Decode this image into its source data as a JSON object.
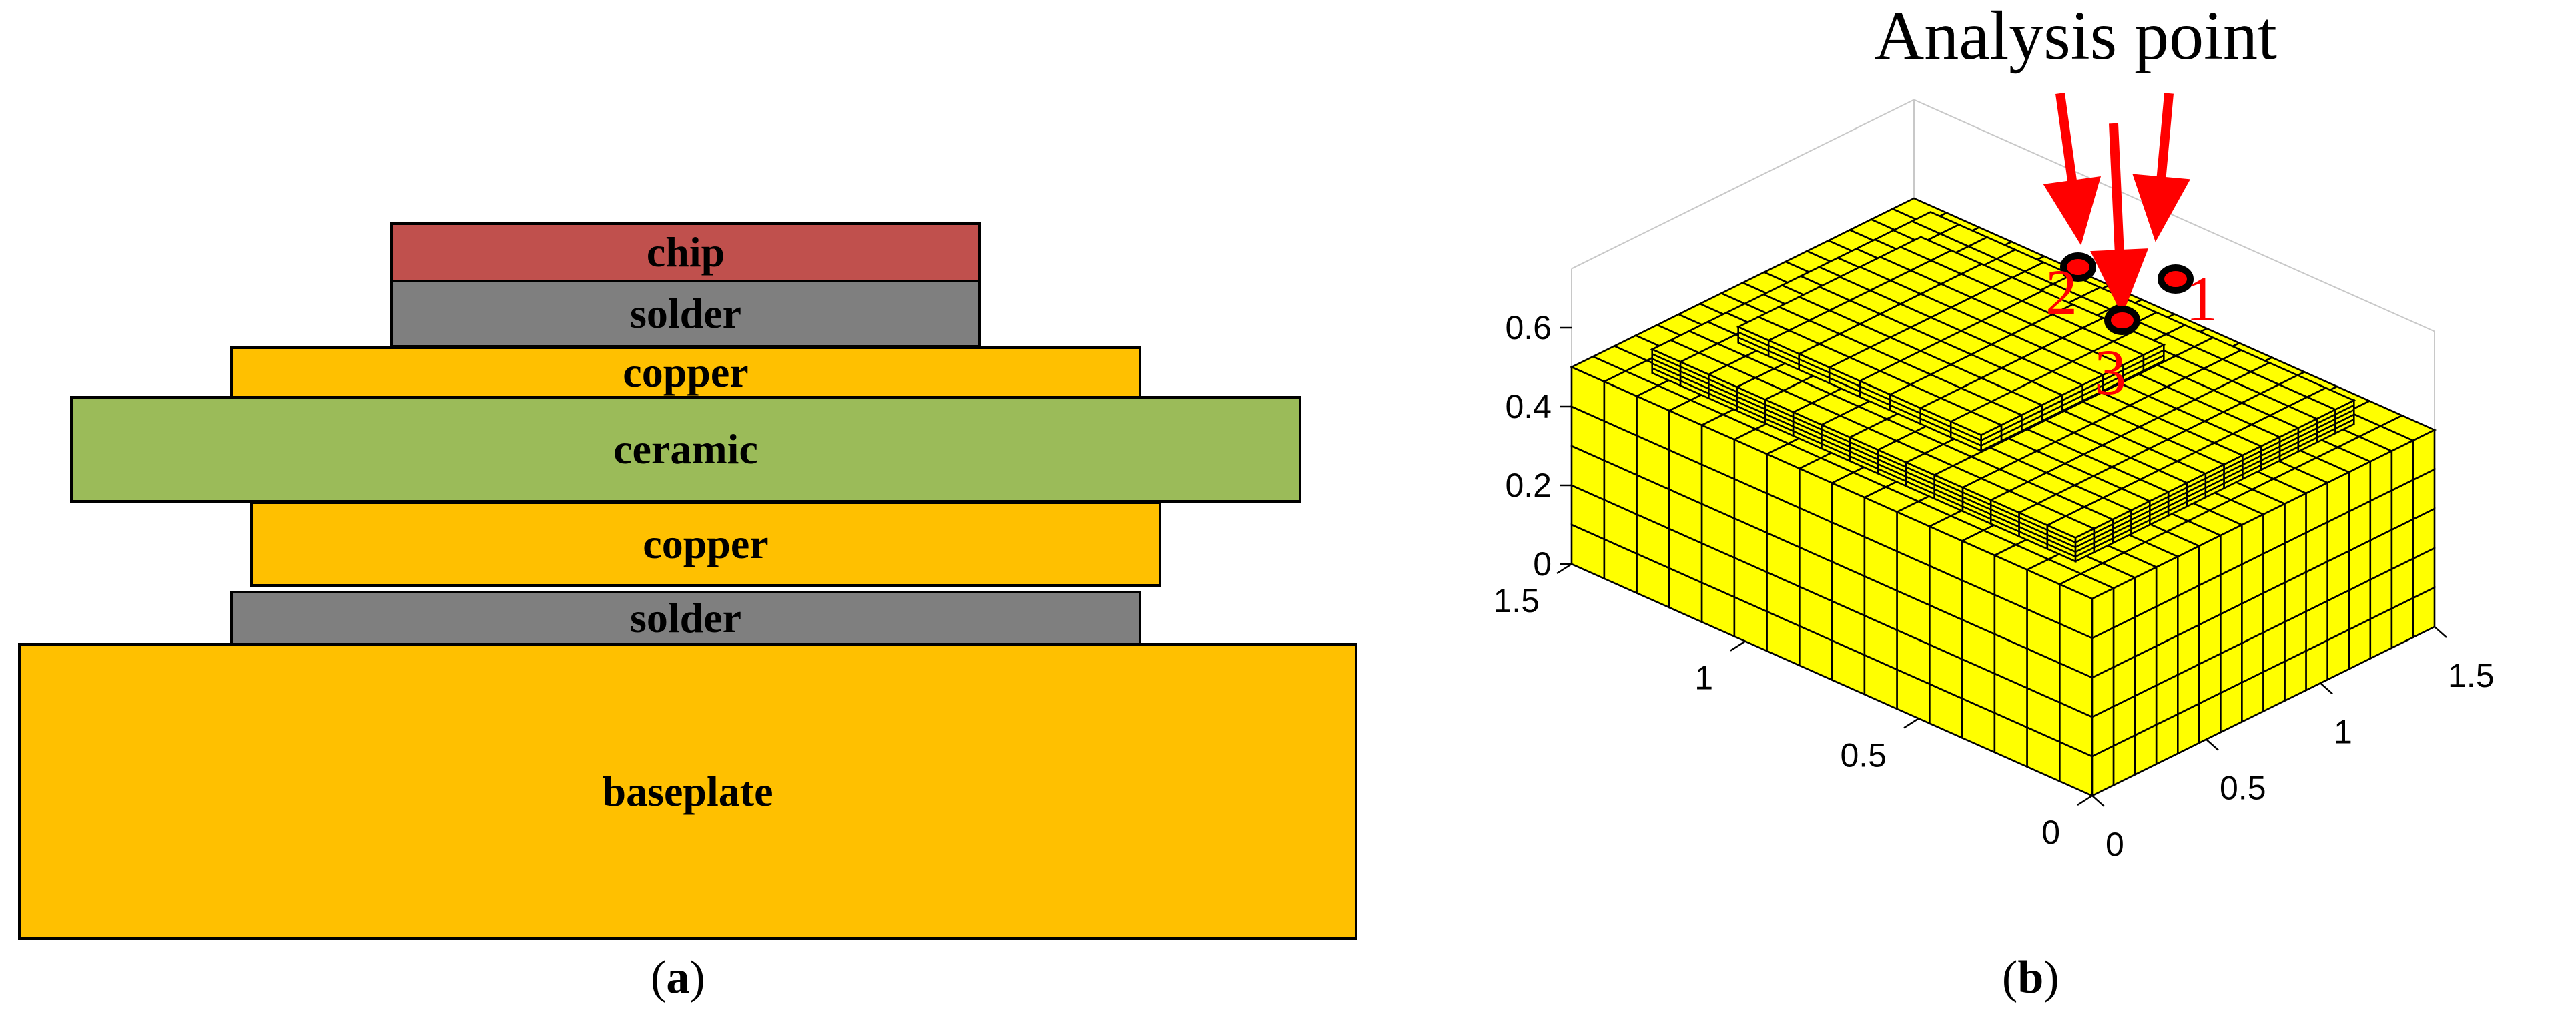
{
  "panel_a": {
    "caption_open": "(",
    "caption_letter": "a",
    "caption_close": ")",
    "layers": [
      {
        "label": "chip",
        "color": "#C0504D"
      },
      {
        "label": "solder",
        "color": "#7F7F7F"
      },
      {
        "label": "copper",
        "color": "#FFC000"
      },
      {
        "label": "ceramic",
        "color": "#9BBB59"
      },
      {
        "label": "copper",
        "color": "#FFC000"
      },
      {
        "label": "solder",
        "color": "#7F7F7F"
      },
      {
        "label": "baseplate",
        "color": "#FFC000"
      }
    ]
  },
  "panel_b": {
    "caption_open": "(",
    "caption_letter": "b",
    "caption_close": ")",
    "annotation_title": "Analysis point",
    "point_labels": [
      "1",
      "2",
      "3"
    ],
    "z_ticks": [
      "0",
      "0.2",
      "0.4",
      "0.6"
    ],
    "y_ticks": [
      "0",
      "0.5",
      "1",
      "1.5"
    ],
    "x_ticks": [
      "0",
      "0.5",
      "1",
      "1.5"
    ],
    "mesh_color": "#FFFF00",
    "arrow_color": "#FF0000"
  }
}
